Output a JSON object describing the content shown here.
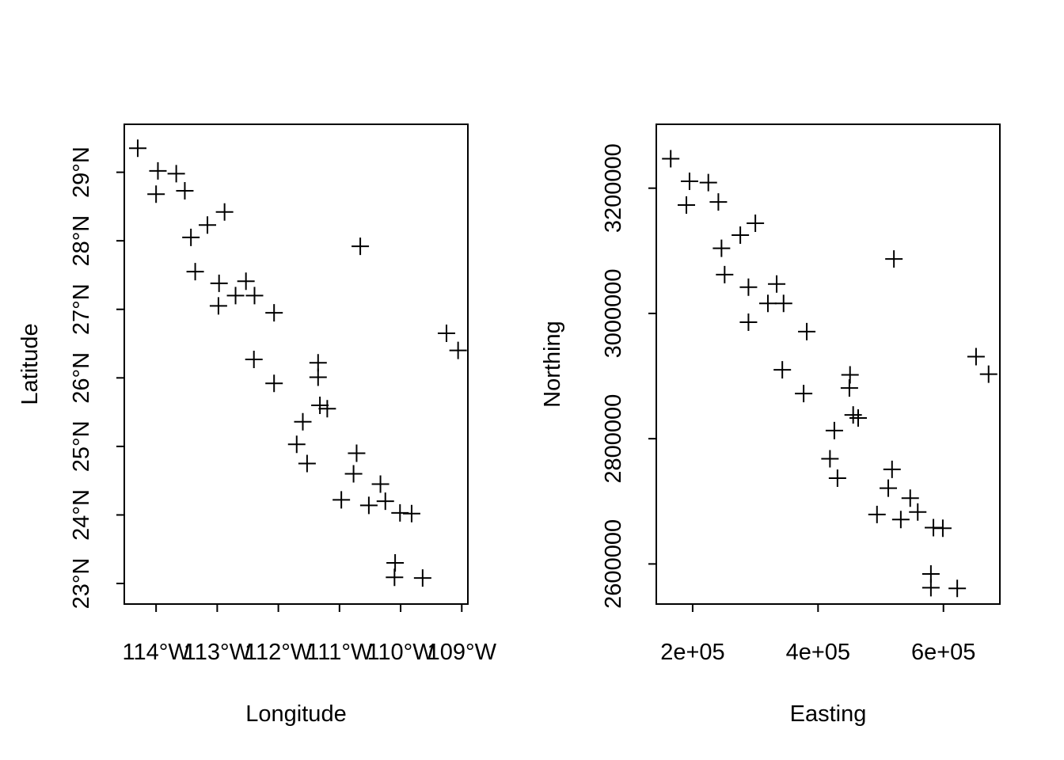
{
  "chart_data": [
    {
      "type": "scatter",
      "title": "",
      "xlabel": "Longitude",
      "ylabel": "Latitude",
      "xlim": [
        -114.52,
        -108.9
      ],
      "ylim": [
        22.7,
        29.7
      ],
      "xticks": [
        -114,
        -113,
        -112,
        -111,
        -110,
        -109
      ],
      "xtick_labels": [
        "114°W",
        "113°W",
        "112°W",
        "111°W",
        "110°W",
        "109°W"
      ],
      "yticks": [
        23,
        24,
        25,
        26,
        27,
        28,
        29
      ],
      "ytick_labels": [
        "23°N",
        "24°N",
        "25°N",
        "26°N",
        "27°N",
        "28°N",
        "29°N"
      ],
      "marker": "+",
      "grid": false,
      "points": [
        {
          "x": -114.3,
          "y": 29.35
        },
        {
          "x": -113.97,
          "y": 29.02
        },
        {
          "x": -113.67,
          "y": 28.98
        },
        {
          "x": -114.0,
          "y": 28.68
        },
        {
          "x": -113.53,
          "y": 28.73
        },
        {
          "x": -113.16,
          "y": 28.23
        },
        {
          "x": -112.88,
          "y": 28.42
        },
        {
          "x": -113.43,
          "y": 28.05
        },
        {
          "x": -113.36,
          "y": 27.55
        },
        {
          "x": -112.97,
          "y": 27.38
        },
        {
          "x": -112.53,
          "y": 27.41
        },
        {
          "x": -112.7,
          "y": 27.2
        },
        {
          "x": -112.39,
          "y": 27.2
        },
        {
          "x": -112.98,
          "y": 27.05
        },
        {
          "x": -112.07,
          "y": 26.95
        },
        {
          "x": -110.66,
          "y": 27.92
        },
        {
          "x": -112.4,
          "y": 26.27
        },
        {
          "x": -112.07,
          "y": 25.92
        },
        {
          "x": -111.35,
          "y": 26.22
        },
        {
          "x": -111.35,
          "y": 26.01
        },
        {
          "x": -111.32,
          "y": 25.6
        },
        {
          "x": -111.2,
          "y": 25.55
        },
        {
          "x": -111.6,
          "y": 25.36
        },
        {
          "x": -111.7,
          "y": 25.03
        },
        {
          "x": -111.53,
          "y": 24.75
        },
        {
          "x": -110.72,
          "y": 24.9
        },
        {
          "x": -110.77,
          "y": 24.6
        },
        {
          "x": -110.33,
          "y": 24.45
        },
        {
          "x": -110.97,
          "y": 24.22
        },
        {
          "x": -110.25,
          "y": 24.2
        },
        {
          "x": -110.52,
          "y": 24.14
        },
        {
          "x": -110.01,
          "y": 24.03
        },
        {
          "x": -109.82,
          "y": 24.02
        },
        {
          "x": -110.09,
          "y": 23.3
        },
        {
          "x": -110.1,
          "y": 23.09
        },
        {
          "x": -109.64,
          "y": 23.08
        },
        {
          "x": -109.25,
          "y": 26.65
        },
        {
          "x": -109.06,
          "y": 26.4
        }
      ]
    },
    {
      "type": "scatter",
      "title": "",
      "xlabel": "Easting",
      "ylabel": "Northing",
      "xlim": [
        142000,
        690000
      ],
      "ylim": [
        2536000,
        3302000
      ],
      "xticks": [
        200000,
        400000,
        600000
      ],
      "xtick_labels": [
        "2e+05",
        "4e+05",
        "6e+05"
      ],
      "yticks": [
        2600000,
        2800000,
        3000000,
        3200000
      ],
      "ytick_labels": [
        "2600000",
        "2800000",
        "3000000",
        "3200000"
      ],
      "marker": "+",
      "grid": false,
      "points": [
        {
          "x": 165000,
          "y": 3247000
        },
        {
          "x": 195000,
          "y": 3211000
        },
        {
          "x": 225000,
          "y": 3209000
        },
        {
          "x": 190000,
          "y": 3173000
        },
        {
          "x": 241000,
          "y": 3178000
        },
        {
          "x": 276000,
          "y": 3125000
        },
        {
          "x": 300000,
          "y": 3144000
        },
        {
          "x": 246000,
          "y": 3104000
        },
        {
          "x": 251000,
          "y": 3062000
        },
        {
          "x": 289000,
          "y": 3042000
        },
        {
          "x": 334000,
          "y": 3047000
        },
        {
          "x": 320000,
          "y": 3016000
        },
        {
          "x": 345000,
          "y": 3016000
        },
        {
          "x": 289000,
          "y": 2986000
        },
        {
          "x": 382000,
          "y": 2971000
        },
        {
          "x": 521000,
          "y": 3087000
        },
        {
          "x": 343000,
          "y": 2910000
        },
        {
          "x": 377000,
          "y": 2872000
        },
        {
          "x": 451000,
          "y": 2902000
        },
        {
          "x": 450000,
          "y": 2881000
        },
        {
          "x": 456000,
          "y": 2838000
        },
        {
          "x": 464000,
          "y": 2833000
        },
        {
          "x": 426000,
          "y": 2813000
        },
        {
          "x": 419000,
          "y": 2768000
        },
        {
          "x": 431000,
          "y": 2737000
        },
        {
          "x": 518000,
          "y": 2751000
        },
        {
          "x": 512000,
          "y": 2721000
        },
        {
          "x": 547000,
          "y": 2705000
        },
        {
          "x": 494000,
          "y": 2679000
        },
        {
          "x": 559000,
          "y": 2683000
        },
        {
          "x": 532000,
          "y": 2671000
        },
        {
          "x": 584000,
          "y": 2658000
        },
        {
          "x": 599000,
          "y": 2657000
        },
        {
          "x": 580000,
          "y": 2584000
        },
        {
          "x": 580000,
          "y": 2562000
        },
        {
          "x": 622000,
          "y": 2561000
        },
        {
          "x": 652000,
          "y": 2931000
        },
        {
          "x": 672000,
          "y": 2903000
        }
      ]
    }
  ]
}
